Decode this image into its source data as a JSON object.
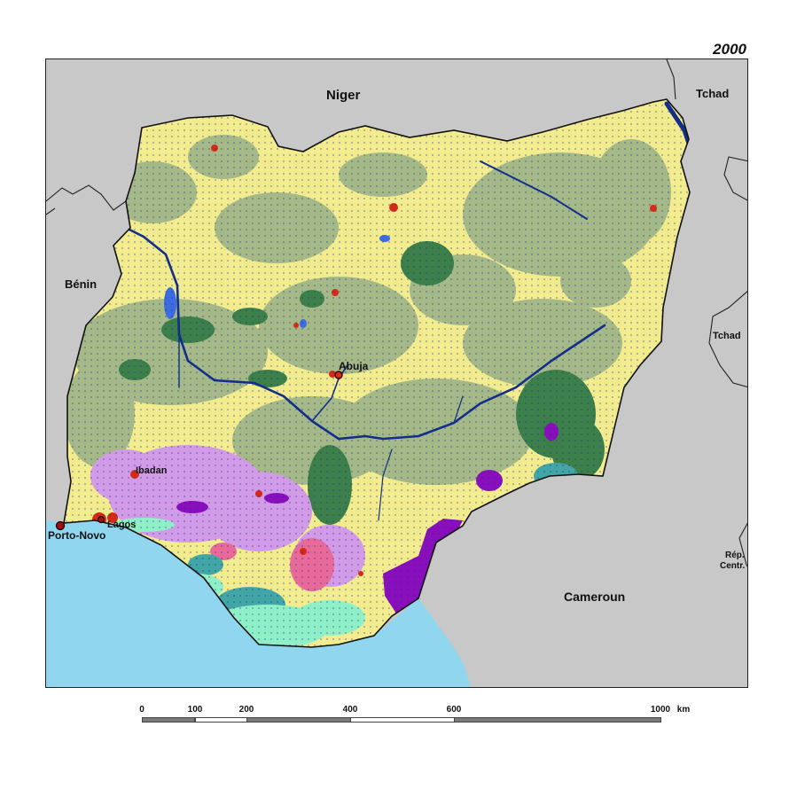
{
  "map": {
    "year": "2000",
    "countries": {
      "niger": "Niger",
      "tchad_north": "Tchad",
      "tchad_east": "Tchad",
      "benin": "Bénin",
      "cameroun": "Cameroun",
      "rep_centr_line1": "Rép.",
      "rep_centr_line2": "Centr."
    },
    "cities": {
      "abuja": "Abuja",
      "ibadan": "Ibadan",
      "lagos": "Lagos",
      "porto_novo": "Porto-Novo"
    },
    "colors": {
      "neighbor": "#c8c8c8",
      "sea": "#8fd6ee",
      "savanna": "#f3ec8f",
      "sage": "#a4b888",
      "forest": "#3d7f4a",
      "water": "#122d8a",
      "lake": "#3d6be0",
      "urban": "#d62a18",
      "lilac": "#d29be8",
      "purple": "#8a0fbc",
      "mangrove": "#8ff0c8",
      "teal": "#42a6a6",
      "pink": "#e86a9a"
    }
  },
  "scale": {
    "ticks": [
      "0",
      "100",
      "200",
      "400",
      "600",
      "1000"
    ],
    "unit": "km"
  }
}
